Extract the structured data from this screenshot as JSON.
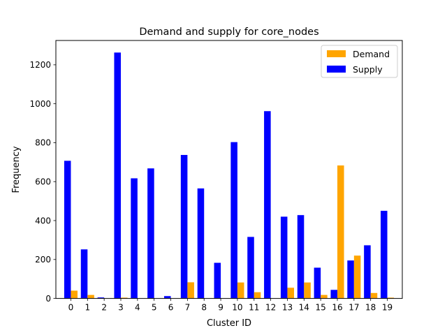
{
  "chart_data": {
    "type": "bar",
    "title": "Demand and supply for core_nodes",
    "xlabel": "Cluster ID",
    "ylabel": "Frequency",
    "categories": [
      "0",
      "1",
      "2",
      "3",
      "4",
      "5",
      "6",
      "7",
      "8",
      "9",
      "10",
      "11",
      "12",
      "13",
      "14",
      "15",
      "16",
      "17",
      "18",
      "19"
    ],
    "series": [
      {
        "name": "Demand",
        "color": "#ffa500",
        "values": [
          40,
          18,
          0,
          4,
          0,
          0,
          0,
          83,
          0,
          0,
          82,
          32,
          0,
          55,
          82,
          18,
          683,
          220,
          28,
          4
        ]
      },
      {
        "name": "Supply",
        "color": "#0000ff",
        "values": [
          707,
          252,
          5,
          1263,
          617,
          668,
          12,
          737,
          565,
          183,
          803,
          316,
          962,
          420,
          428,
          158,
          44,
          195,
          273,
          450
        ]
      }
    ],
    "ylim": [
      0,
      1325
    ],
    "yticks": [
      0,
      200,
      400,
      600,
      800,
      1000,
      1200
    ],
    "grid": false,
    "legend_position": "top-right"
  }
}
